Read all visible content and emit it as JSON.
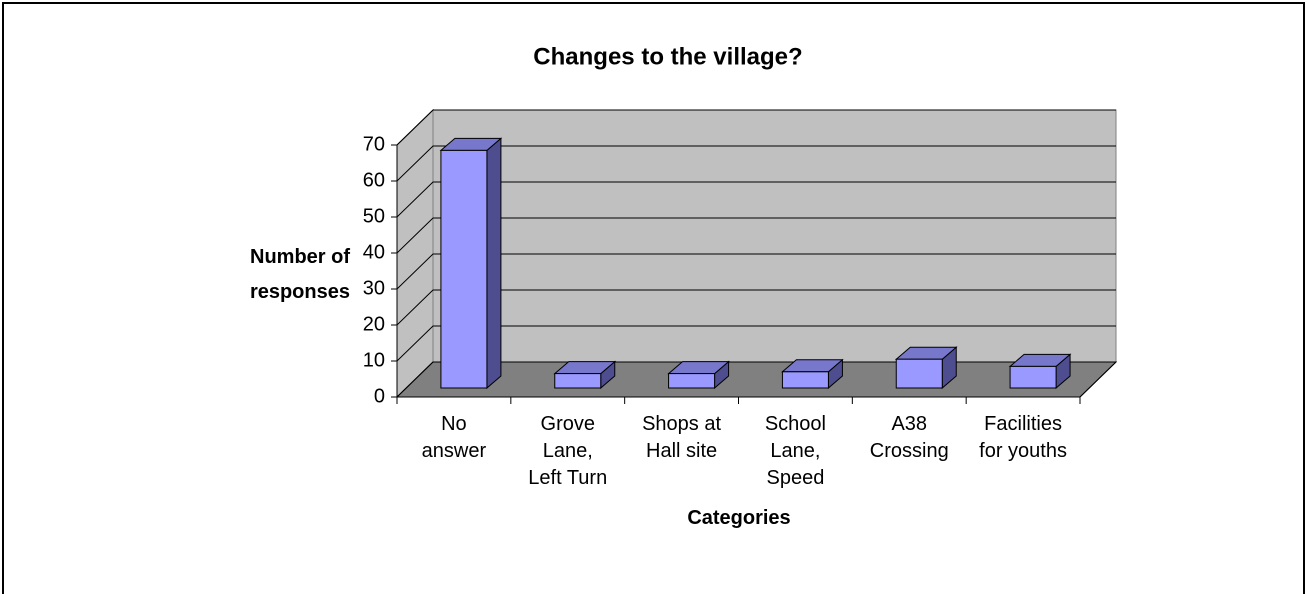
{
  "chart_data": {
    "type": "bar3d",
    "title": "Changes to the village?",
    "x_label": "Categories",
    "y_label": "Number of responses",
    "categories": [
      "No\nanswer",
      "Grove\nLane,\nLeft Turn",
      "Shops at\nHall site",
      "School\nLane,\nSpeed",
      "A38\nCrossing",
      "Facilities\nfor youths"
    ],
    "values": [
      66,
      4,
      4,
      4.5,
      8,
      6
    ],
    "color": "#9999ff",
    "ylim": [
      0,
      70
    ],
    "yticks": [
      0,
      10,
      20,
      30,
      40,
      50,
      60,
      70
    ],
    "grid": true
  }
}
